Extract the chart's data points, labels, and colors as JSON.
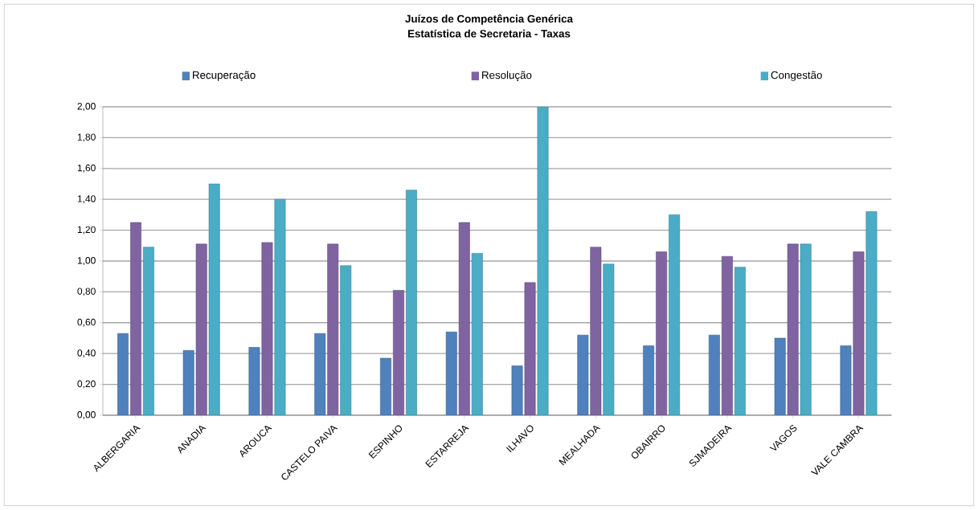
{
  "chart_data": {
    "type": "bar",
    "title": "Juízos de Competência Genérica",
    "subtitle": "Estatística de Secretaria - Taxas",
    "categories": [
      "ALBERGARIA",
      "ANADIA",
      "AROUCA",
      "CASTELO PAIVA",
      "ESPINHO",
      "ESTARREJA",
      "ILHAVO",
      "MEALHADA",
      "OBAIRRO",
      "SJMADEIRA",
      "VAGOS",
      "VALE CAMBRA"
    ],
    "series": [
      {
        "name": "Recuperação",
        "color": "#4f81bd",
        "values": [
          0.53,
          0.42,
          0.44,
          0.53,
          0.37,
          0.54,
          0.32,
          0.52,
          0.45,
          0.52,
          0.5,
          0.45
        ]
      },
      {
        "name": "Resolução",
        "color": "#8064a2",
        "values": [
          1.25,
          1.11,
          1.12,
          1.11,
          0.81,
          1.25,
          0.86,
          1.09,
          1.06,
          1.03,
          1.11,
          1.06
        ]
      },
      {
        "name": "Congestão",
        "color": "#4bacc6",
        "values": [
          1.09,
          1.5,
          1.4,
          0.97,
          1.46,
          1.05,
          2.0,
          0.98,
          1.3,
          0.96,
          1.11,
          1.32
        ]
      }
    ],
    "ylim": [
      0,
      2
    ],
    "yticks": [
      {
        "value": 0,
        "label": "0,00"
      },
      {
        "value": 0.2,
        "label": "0,20"
      },
      {
        "value": 0.4,
        "label": "0,40"
      },
      {
        "value": 0.6,
        "label": "0,60"
      },
      {
        "value": 0.8,
        "label": "0,80"
      },
      {
        "value": 1.0,
        "label": "1,00"
      },
      {
        "value": 1.2,
        "label": "1,20"
      },
      {
        "value": 1.4,
        "label": "1,40"
      },
      {
        "value": 1.6,
        "label": "1,60"
      },
      {
        "value": 1.8,
        "label": "1,80"
      },
      {
        "value": 2.0,
        "label": "2,00"
      }
    ],
    "grid": "y",
    "legend": "top"
  }
}
